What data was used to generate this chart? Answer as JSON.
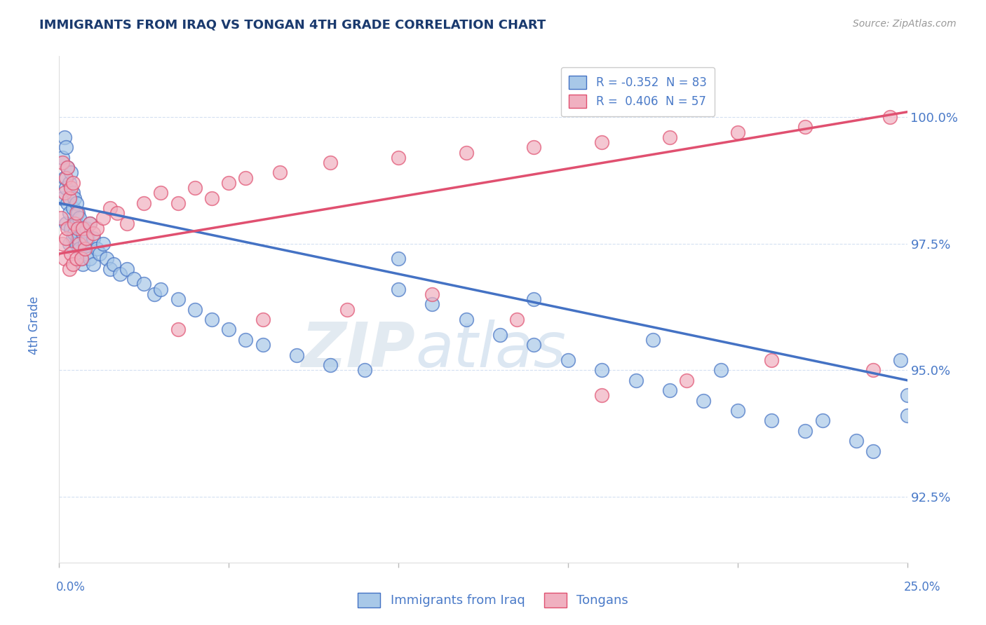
{
  "title": "IMMIGRANTS FROM IRAQ VS TONGAN 4TH GRADE CORRELATION CHART",
  "source": "Source: ZipAtlas.com",
  "ylabel": "4th Grade",
  "ytick_values": [
    92.5,
    95.0,
    97.5,
    100.0
  ],
  "xmin": 0.0,
  "xmax": 25.0,
  "ymin": 91.2,
  "ymax": 101.2,
  "legend_iraq": "R = -0.352  N = 83",
  "legend_tongan": "R =  0.406  N = 57",
  "iraq_color": "#a8c8e8",
  "tongan_color": "#f0b0c0",
  "iraq_line_color": "#4472c4",
  "tongan_line_color": "#e05070",
  "title_color": "#1a3a6e",
  "axis_color": "#4a7ac8",
  "grid_color": "#d0ddf0",
  "watermark_color": "#dce8f5",
  "background_color": "#ffffff",
  "iraq_x": [
    0.1,
    0.1,
    0.15,
    0.15,
    0.2,
    0.2,
    0.2,
    0.25,
    0.25,
    0.3,
    0.3,
    0.3,
    0.35,
    0.35,
    0.4,
    0.4,
    0.4,
    0.45,
    0.45,
    0.5,
    0.5,
    0.5,
    0.55,
    0.55,
    0.6,
    0.6,
    0.65,
    0.65,
    0.7,
    0.7,
    0.75,
    0.8,
    0.8,
    0.85,
    0.9,
    0.9,
    1.0,
    1.0,
    1.1,
    1.2,
    1.3,
    1.4,
    1.5,
    1.6,
    1.8,
    2.0,
    2.2,
    2.5,
    2.8,
    3.0,
    3.5,
    4.0,
    4.5,
    5.0,
    5.5,
    6.0,
    7.0,
    8.0,
    9.0,
    10.0,
    11.0,
    12.0,
    13.0,
    14.0,
    15.0,
    16.0,
    17.0,
    18.0,
    19.0,
    20.0,
    21.0,
    22.0,
    23.5,
    24.0,
    10.0,
    14.0,
    17.5,
    19.5,
    22.5,
    24.8,
    25.0,
    25.0
  ],
  "iraq_y": [
    99.2,
    98.4,
    99.6,
    98.8,
    99.4,
    98.6,
    97.9,
    99.0,
    98.3,
    98.7,
    98.1,
    97.5,
    98.9,
    97.8,
    98.5,
    97.6,
    98.2,
    98.4,
    97.7,
    98.3,
    97.9,
    97.5,
    98.1,
    97.6,
    98.0,
    97.4,
    97.8,
    97.2,
    97.7,
    97.1,
    97.5,
    97.8,
    97.3,
    97.6,
    97.9,
    97.2,
    97.6,
    97.1,
    97.4,
    97.3,
    97.5,
    97.2,
    97.0,
    97.1,
    96.9,
    97.0,
    96.8,
    96.7,
    96.5,
    96.6,
    96.4,
    96.2,
    96.0,
    95.8,
    95.6,
    95.5,
    95.3,
    95.1,
    95.0,
    96.6,
    96.3,
    96.0,
    95.7,
    95.5,
    95.2,
    95.0,
    94.8,
    94.6,
    94.4,
    94.2,
    94.0,
    93.8,
    93.6,
    93.4,
    97.2,
    96.4,
    95.6,
    95.0,
    94.0,
    95.2,
    94.5,
    94.1
  ],
  "tongan_x": [
    0.05,
    0.1,
    0.1,
    0.15,
    0.15,
    0.2,
    0.2,
    0.25,
    0.25,
    0.3,
    0.3,
    0.35,
    0.35,
    0.4,
    0.4,
    0.45,
    0.5,
    0.5,
    0.55,
    0.6,
    0.65,
    0.7,
    0.75,
    0.8,
    0.9,
    1.0,
    1.1,
    1.3,
    1.5,
    1.7,
    2.0,
    2.5,
    3.0,
    3.5,
    4.0,
    4.5,
    5.0,
    5.5,
    6.5,
    8.0,
    10.0,
    12.0,
    14.0,
    16.0,
    18.0,
    20.0,
    22.0,
    24.5,
    3.5,
    6.0,
    8.5,
    11.0,
    13.5,
    16.0,
    18.5,
    21.0,
    24.0
  ],
  "tongan_y": [
    98.0,
    99.1,
    97.5,
    98.5,
    97.2,
    98.8,
    97.6,
    99.0,
    97.8,
    98.4,
    97.0,
    98.6,
    97.3,
    98.7,
    97.1,
    97.9,
    98.1,
    97.2,
    97.8,
    97.5,
    97.2,
    97.8,
    97.4,
    97.6,
    97.9,
    97.7,
    97.8,
    98.0,
    98.2,
    98.1,
    97.9,
    98.3,
    98.5,
    98.3,
    98.6,
    98.4,
    98.7,
    98.8,
    98.9,
    99.1,
    99.2,
    99.3,
    99.4,
    99.5,
    99.6,
    99.7,
    99.8,
    100.0,
    95.8,
    96.0,
    96.2,
    96.5,
    96.0,
    94.5,
    94.8,
    95.2,
    95.0
  ],
  "iraq_trendline_x": [
    0.0,
    25.0
  ],
  "iraq_trendline_y": [
    98.3,
    94.8
  ],
  "tongan_trendline_x": [
    0.0,
    25.0
  ],
  "tongan_trendline_y": [
    97.3,
    100.1
  ]
}
